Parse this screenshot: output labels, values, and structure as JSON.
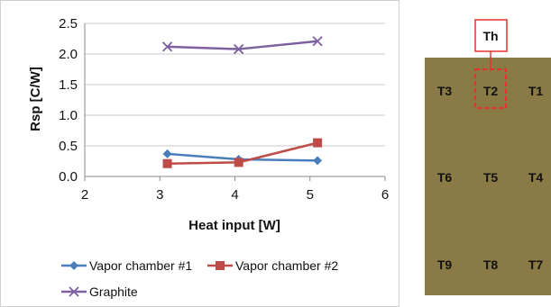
{
  "chart_data": {
    "type": "line",
    "xlabel": "Heat input [W]",
    "ylabel": "Rsp [C/W]",
    "xlim": [
      2,
      6
    ],
    "ylim": [
      0.0,
      2.5
    ],
    "xticks": [
      "2",
      "3",
      "4",
      "5",
      "6"
    ],
    "yticks": [
      "0.0",
      "0.5",
      "1.0",
      "1.5",
      "2.0",
      "2.5"
    ],
    "grid": "horizontal",
    "legend_placement": "bottom",
    "series": [
      {
        "name": "Vapor chamber #1",
        "color": "#4a7ebb",
        "marker": "diamond",
        "x": [
          3.1,
          4.05,
          5.1
        ],
        "y": [
          0.37,
          0.28,
          0.26
        ]
      },
      {
        "name": "Vapor chamber #2",
        "color": "#be4b48",
        "marker": "square",
        "x": [
          3.1,
          4.05,
          5.1
        ],
        "y": [
          0.21,
          0.23,
          0.55
        ]
      },
      {
        "name": "Graphite",
        "color": "#7d60a0",
        "marker": "x",
        "x": [
          3.1,
          4.05,
          5.1
        ],
        "y": [
          2.12,
          2.08,
          2.21
        ]
      }
    ]
  },
  "diagram": {
    "plate_color": "#8a7a45",
    "heater_label": "Th",
    "heater_color": "#e8302e",
    "sensors": [
      [
        "T3",
        "T2",
        "T1"
      ],
      [
        "T6",
        "T5",
        "T4"
      ],
      [
        "T9",
        "T8",
        "T7"
      ]
    ]
  }
}
